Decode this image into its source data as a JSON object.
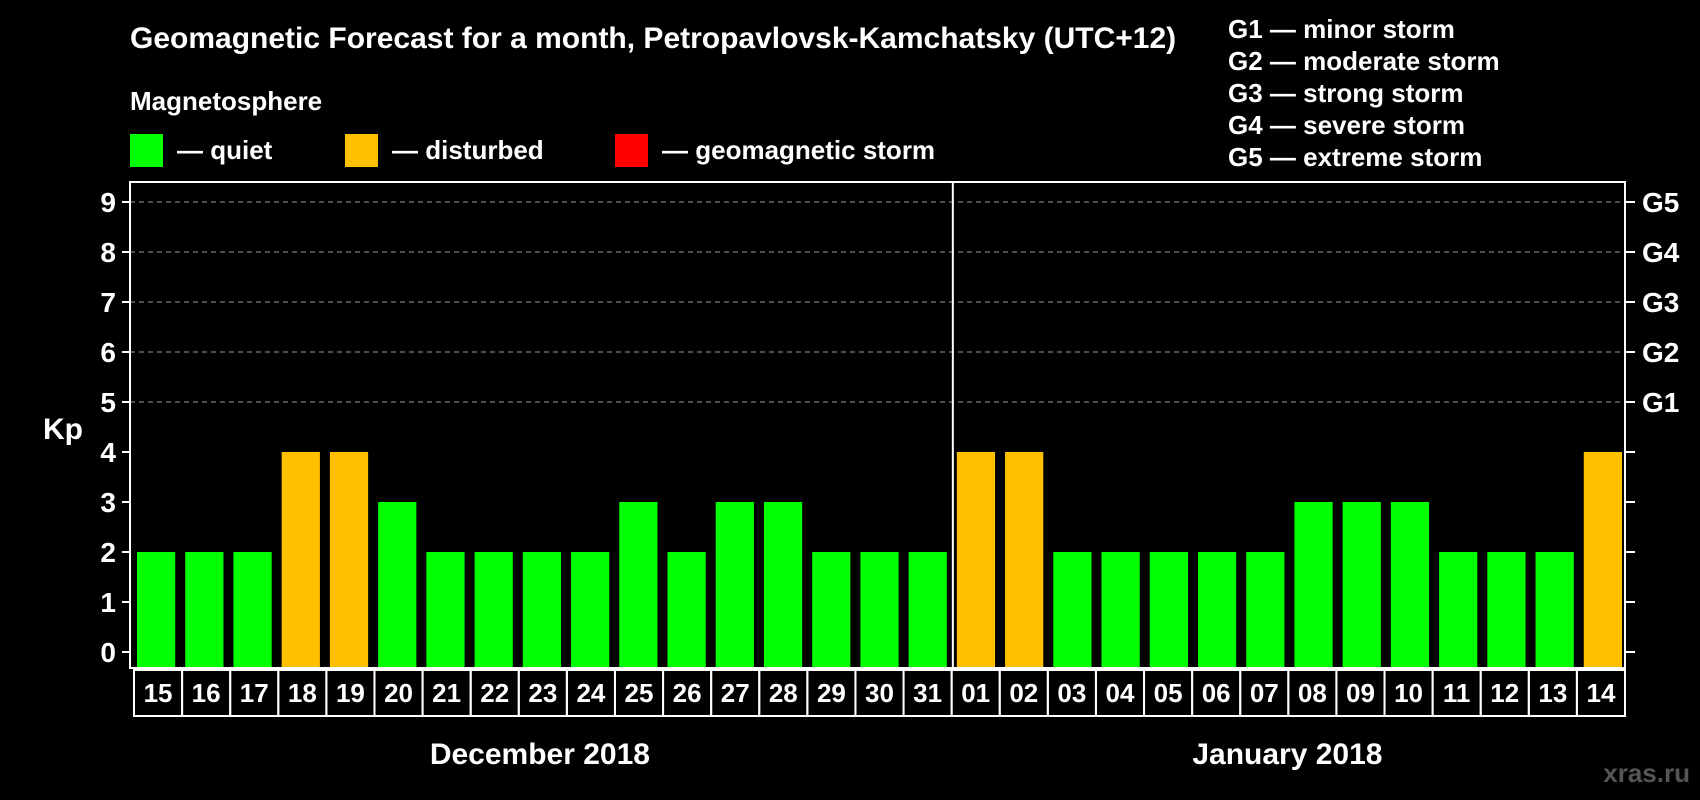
{
  "chart_data": {
    "type": "bar",
    "title": "Geomagnetic Forecast for a month, Petropavlovsk-Kamchatsky (UTC+12)",
    "legend_title": "Magnetosphere",
    "legend": [
      {
        "label": "— quiet",
        "color": "#00ff00"
      },
      {
        "label": "— disturbed",
        "color": "#ffc000"
      },
      {
        "label": "— geomagnetic storm",
        "color": "#ff0000"
      }
    ],
    "storm_scale": [
      "G1 — minor storm",
      "G2 — moderate storm",
      "G3 — strong storm",
      "G4 — severe storm",
      "G5 — extreme storm"
    ],
    "ylabel": "Kp",
    "ylim": [
      0,
      9
    ],
    "yticks": [
      "0",
      "1",
      "2",
      "3",
      "4",
      "5",
      "6",
      "7",
      "8",
      "9"
    ],
    "right_ticks": [
      {
        "value": 5,
        "label": "G1"
      },
      {
        "value": 6,
        "label": "G2"
      },
      {
        "value": 7,
        "label": "G3"
      },
      {
        "value": 8,
        "label": "G4"
      },
      {
        "value": 9,
        "label": "G5"
      }
    ],
    "categories": [
      "15",
      "16",
      "17",
      "18",
      "19",
      "20",
      "21",
      "22",
      "23",
      "24",
      "25",
      "26",
      "27",
      "28",
      "29",
      "30",
      "31",
      "01",
      "02",
      "03",
      "04",
      "05",
      "06",
      "07",
      "08",
      "09",
      "10",
      "11",
      "12",
      "13",
      "14"
    ],
    "values": [
      2,
      2,
      2,
      4,
      4,
      3,
      2,
      2,
      2,
      2,
      3,
      2,
      3,
      3,
      2,
      2,
      2,
      4,
      4,
      2,
      2,
      2,
      2,
      2,
      3,
      3,
      3,
      2,
      2,
      2,
      4
    ],
    "months": [
      {
        "label": "December 2018",
        "start": 0,
        "count": 17
      },
      {
        "label": "January 2018",
        "start": 17,
        "count": 14
      }
    ],
    "color_rule": {
      "quiet_max": 3,
      "disturbed": 4,
      "storm_min": 5
    },
    "grid": "dashed horizontal",
    "watermark": "xras.ru"
  }
}
